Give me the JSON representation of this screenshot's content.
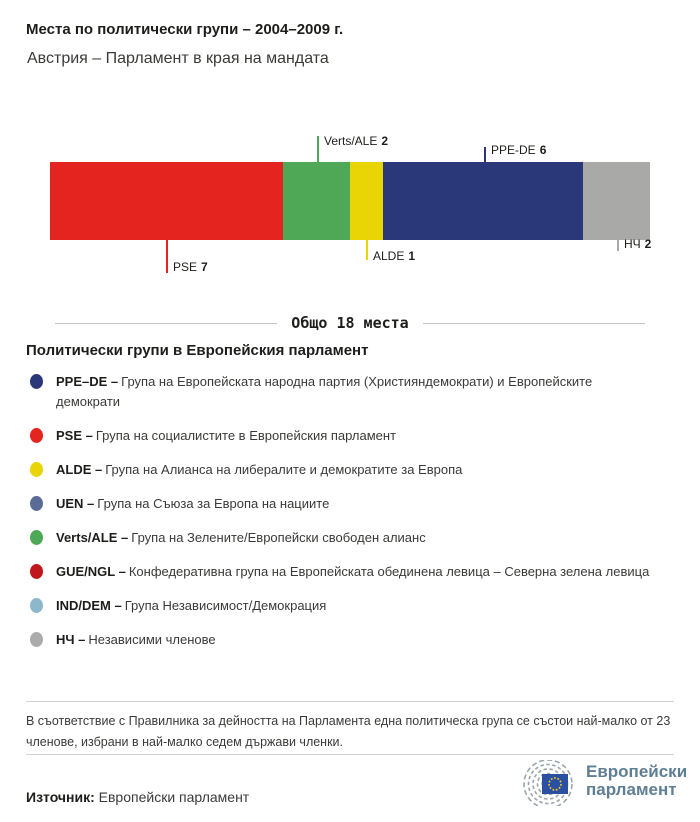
{
  "header": {
    "title": "Места по политически групи – 2004–2009 г.",
    "subtitle": "Австрия – Парламент в края на мандата"
  },
  "chart_data": {
    "type": "bar",
    "orientation": "horizontal",
    "stacked": true,
    "title": "Места по политически групи – 2004–2009 г.",
    "subtitle": "Австрия – Парламент в края на мандата",
    "total_seats": 18,
    "total_label": "Общо 18 места",
    "categories": [
      "PSE",
      "Verts/ALE",
      "ALDE",
      "PPE-DE",
      "НЧ"
    ],
    "values": [
      7,
      2,
      1,
      6,
      2
    ],
    "segments": [
      {
        "group": "PSE",
        "seats": 7,
        "color": "#e3241f",
        "label_position": "below"
      },
      {
        "group": "Verts/ALE",
        "seats": 2,
        "color": "#4fa855",
        "label_position": "above"
      },
      {
        "group": "ALDE",
        "seats": 1,
        "color": "#e9d506",
        "label_position": "below"
      },
      {
        "group": "PPE-DE",
        "seats": 6,
        "color": "#2a3778",
        "label_position": "above"
      },
      {
        "group": "НЧ",
        "seats": 2,
        "color": "#a9a9a7",
        "label_position": "below"
      }
    ]
  },
  "legend": {
    "heading": "Политически групи в Европейския парламент",
    "items": [
      {
        "abbr": "PPE–DE –",
        "desc": "Група на Европейската народна партия (Християндемократи) и Европейските демократи",
        "color": "#2a3778"
      },
      {
        "abbr": "PSE –",
        "desc": "Група на социалистите в Европейския парламент",
        "color": "#e3241f"
      },
      {
        "abbr": "ALDE –",
        "desc": "Група на Алианса на либералите и демократите за Европа",
        "color": "#e9d506"
      },
      {
        "abbr": "UEN –",
        "desc": "Група на Съюза за Европа на нациите",
        "color": "#5a6b96"
      },
      {
        "abbr": "Verts/ALE –",
        "desc": "Група на Зелените/Европейски свободен алианс",
        "color": "#4fa855"
      },
      {
        "abbr": "GUE/NGL –",
        "desc": "Конфедеративна група на Европейската обединена левица – Северна зелена левица",
        "color": "#c0161d"
      },
      {
        "abbr": "IND/DEM –",
        "desc": "Група Независимост/Демокрация",
        "color": "#8cb7cd"
      },
      {
        "abbr": "НЧ –",
        "desc": "Независими членове",
        "color": "#ababab"
      }
    ]
  },
  "footer": {
    "note": "В съответствие с Правилника за дейността на Парламента една политическа група се състои най-малко от 23 членове, избрани в най-малко седем държави членки.",
    "source_label": "Източник:",
    "source_value": " Европейски парламент",
    "logo_line1": "Европейски",
    "logo_line2": "парламент"
  }
}
